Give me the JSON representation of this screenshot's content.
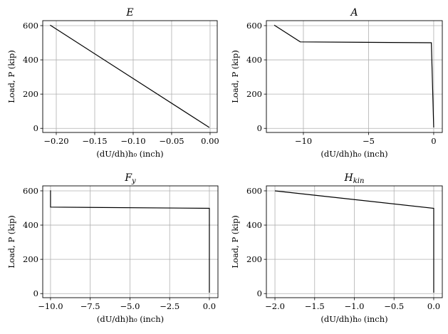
{
  "chart_data": [
    {
      "type": "line",
      "title": "E",
      "title_sub": "",
      "xlabel": "(dU/dh)h₀ (inch)",
      "ylabel": "Load, P (kip)",
      "xlim": [
        -0.2176,
        0.0093
      ],
      "ylim": [
        -24,
        629
      ],
      "xticks": [
        -0.2,
        -0.15,
        -0.1,
        -0.05,
        0.0
      ],
      "xtick_labels": [
        "−0.20",
        "−0.15",
        "−0.10",
        "−0.05",
        "0.00"
      ],
      "yticks": [
        0,
        200,
        400,
        600
      ],
      "ytick_labels": [
        "0",
        "200",
        "400",
        "600"
      ],
      "grid": true,
      "x": [
        -0.208,
        -0.001
      ],
      "y": [
        603,
        5
      ],
      "color": "#000000"
    },
    {
      "type": "line",
      "title": "A",
      "title_sub": "",
      "xlabel": "(dU/dh)h₀ (inch)",
      "ylabel": "Load, P (kip)",
      "xlim": [
        -12.84,
        0.66
      ],
      "ylim": [
        -24,
        629
      ],
      "xticks": [
        -10,
        -5,
        0
      ],
      "xtick_labels": [
        "−10",
        "−5",
        "0"
      ],
      "yticks": [
        0,
        200,
        400,
        600
      ],
      "ytick_labels": [
        "0",
        "200",
        "400",
        "600"
      ],
      "grid": true,
      "x": [
        -12.24,
        -10.24,
        -0.18,
        0.0
      ],
      "y": [
        603,
        505,
        500,
        5
      ],
      "color": "#000000"
    },
    {
      "type": "line",
      "title": "F",
      "title_sub": "y",
      "xlabel": "(dU/dh)h₀ (inch)",
      "ylabel": "Load, P (kip)",
      "xlim": [
        -10.49,
        0.54
      ],
      "ylim": [
        -24,
        629
      ],
      "xticks": [
        -10.0,
        -7.5,
        -5.0,
        -2.5,
        0.0
      ],
      "xtick_labels": [
        "−10.0",
        "−7.5",
        "−5.0",
        "−2.5",
        "0.0"
      ],
      "yticks": [
        0,
        200,
        400,
        600
      ],
      "ytick_labels": [
        "0",
        "200",
        "400",
        "600"
      ],
      "grid": true,
      "x": [
        -10.0,
        -10.0,
        0.0,
        0.0
      ],
      "y": [
        603,
        505,
        498,
        5
      ],
      "color": "#000000"
    },
    {
      "type": "line",
      "title": "H",
      "title_sub": "kin",
      "xlabel": "(dU/dh)h₀ (inch)",
      "ylabel": "Load, P (kip)",
      "xlim": [
        -2.108,
        0.108
      ],
      "ylim": [
        -24,
        629
      ],
      "xticks": [
        -2.0,
        -1.5,
        -1.0,
        -0.5,
        0.0
      ],
      "xtick_labels": [
        "−2.0",
        "−1.5",
        "−1.0",
        "−0.5",
        "0.0"
      ],
      "yticks": [
        0,
        200,
        400,
        600
      ],
      "ytick_labels": [
        "0",
        "200",
        "400",
        "600"
      ],
      "grid": true,
      "x": [
        -2.0,
        0.0,
        0.0
      ],
      "y": [
        600,
        498,
        5
      ],
      "color": "#000000"
    }
  ]
}
